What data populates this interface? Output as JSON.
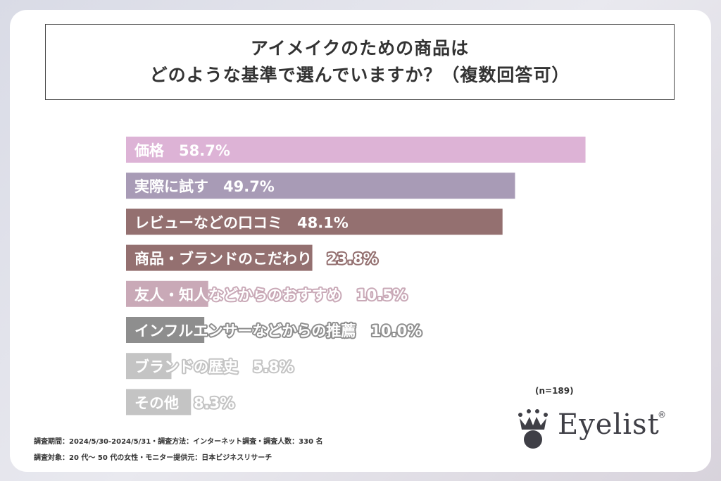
{
  "title": {
    "line1": "アイメイクのための商品は",
    "line2": "どのような基準で選んでいますか？（複数回答可）"
  },
  "chart_data": {
    "type": "bar",
    "orientation": "horizontal",
    "categories": [
      "価格",
      "実際に試す",
      "レビューなどの口コミ",
      "商品・ブランドのこだわり",
      "友人・知人などからのおすすめ",
      "インフルエンサーなどからの推薦",
      "ブランドの歴史",
      "その他"
    ],
    "values": [
      58.7,
      49.7,
      48.1,
      23.8,
      10.5,
      10.0,
      5.8,
      8.3
    ],
    "value_labels": [
      "58.7%",
      "49.7%",
      "48.1%",
      "23.8%",
      "10.5%",
      "10.0%",
      "5.8%",
      "8.3%"
    ],
    "colors": [
      "#ddb3d6",
      "#a89bb6",
      "#947070",
      "#947070",
      "#c9a9b7",
      "#8e8e8e",
      "#c4c4c4",
      "#c4c4c4"
    ],
    "xlim": [
      0,
      60
    ],
    "note": "(n=189)"
  },
  "brand": {
    "name": "Eyelist",
    "reg": "®",
    "crown_icon": "crown-icon"
  },
  "footer": {
    "line1": "調査期間：2024/5/30-2024/5/31・調査方法：インターネット調査・調査人数：330 名",
    "line2": "調査対象：20 代〜 50 代の女性・モニター提供元：日本ビジネスリサーチ"
  }
}
